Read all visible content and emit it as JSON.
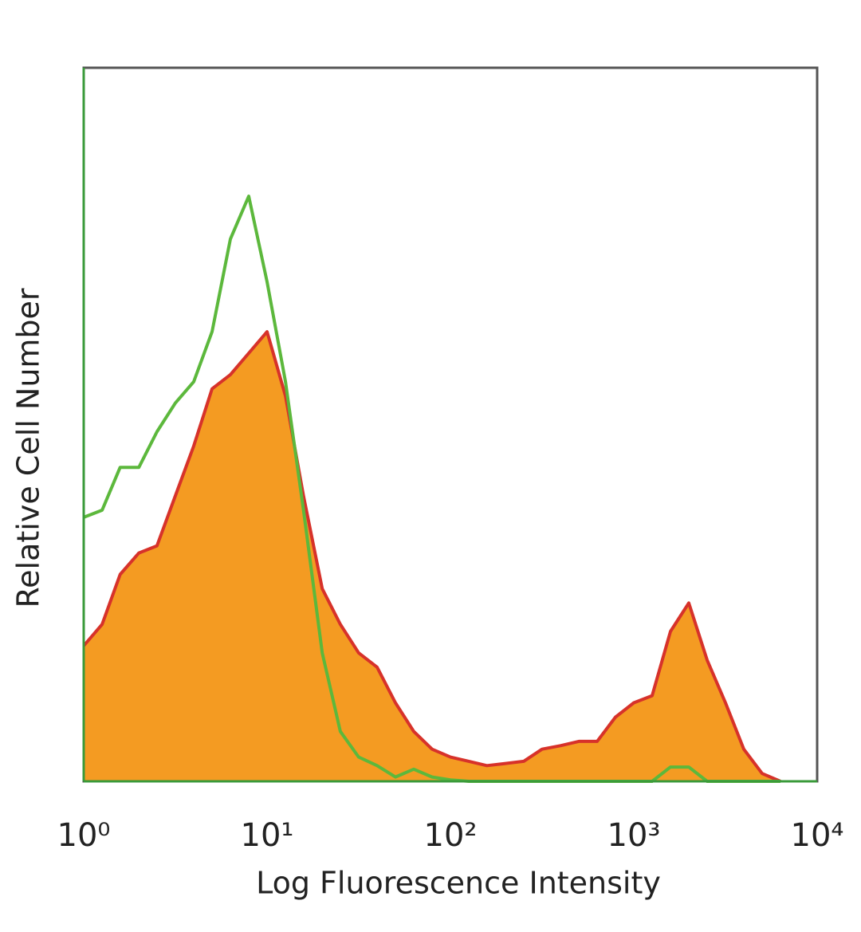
{
  "chart_data": {
    "type": "area",
    "x_label": "Log Fluorescence Intensity",
    "y_label": "Relative Cell Number",
    "xscale": "log",
    "xlim": [
      1,
      10000
    ],
    "xticks": [
      {
        "value": 1,
        "label": "10⁰"
      },
      {
        "value": 10,
        "label": "10¹"
      },
      {
        "value": 100,
        "label": "10²"
      },
      {
        "value": 1000,
        "label": "10³"
      },
      {
        "value": 10000,
        "label": "10⁴"
      }
    ],
    "ylim": [
      0,
      100
    ],
    "x": [
      1,
      1.26,
      1.58,
      2,
      2.51,
      3.16,
      3.98,
      5.01,
      6.31,
      7.94,
      10,
      12.6,
      15.8,
      20,
      25.1,
      31.6,
      39.8,
      50.1,
      63.1,
      79.4,
      100,
      126,
      158,
      200,
      251,
      316,
      398,
      501,
      631,
      794,
      1000,
      1259,
      1585,
      1995,
      2512,
      3162,
      3981,
      5012,
      6310
    ],
    "series": [
      {
        "color": "#d7322a",
        "fill": "#f49b22",
        "values": [
          19,
          22,
          29,
          32,
          33,
          40,
          47,
          55,
          57,
          60,
          63,
          54,
          40,
          27,
          22,
          18,
          16,
          11,
          7,
          4.5,
          3.4,
          2.8,
          2.2,
          2.5,
          2.8,
          4.5,
          5,
          5.6,
          5.6,
          9,
          11,
          12,
          21,
          25,
          17,
          11,
          4.5,
          1.1,
          0
        ]
      },
      {
        "color": "#5cb83c",
        "values": [
          37,
          38,
          44,
          44,
          49,
          53,
          56,
          63,
          76,
          82,
          70,
          56,
          38,
          18,
          7,
          3.4,
          2.2,
          0.6,
          1.7,
          0.6,
          0.2,
          0,
          0,
          0,
          0,
          0,
          0,
          0,
          0,
          0,
          0,
          0,
          2,
          2,
          0,
          0,
          0,
          0,
          0
        ]
      }
    ]
  }
}
